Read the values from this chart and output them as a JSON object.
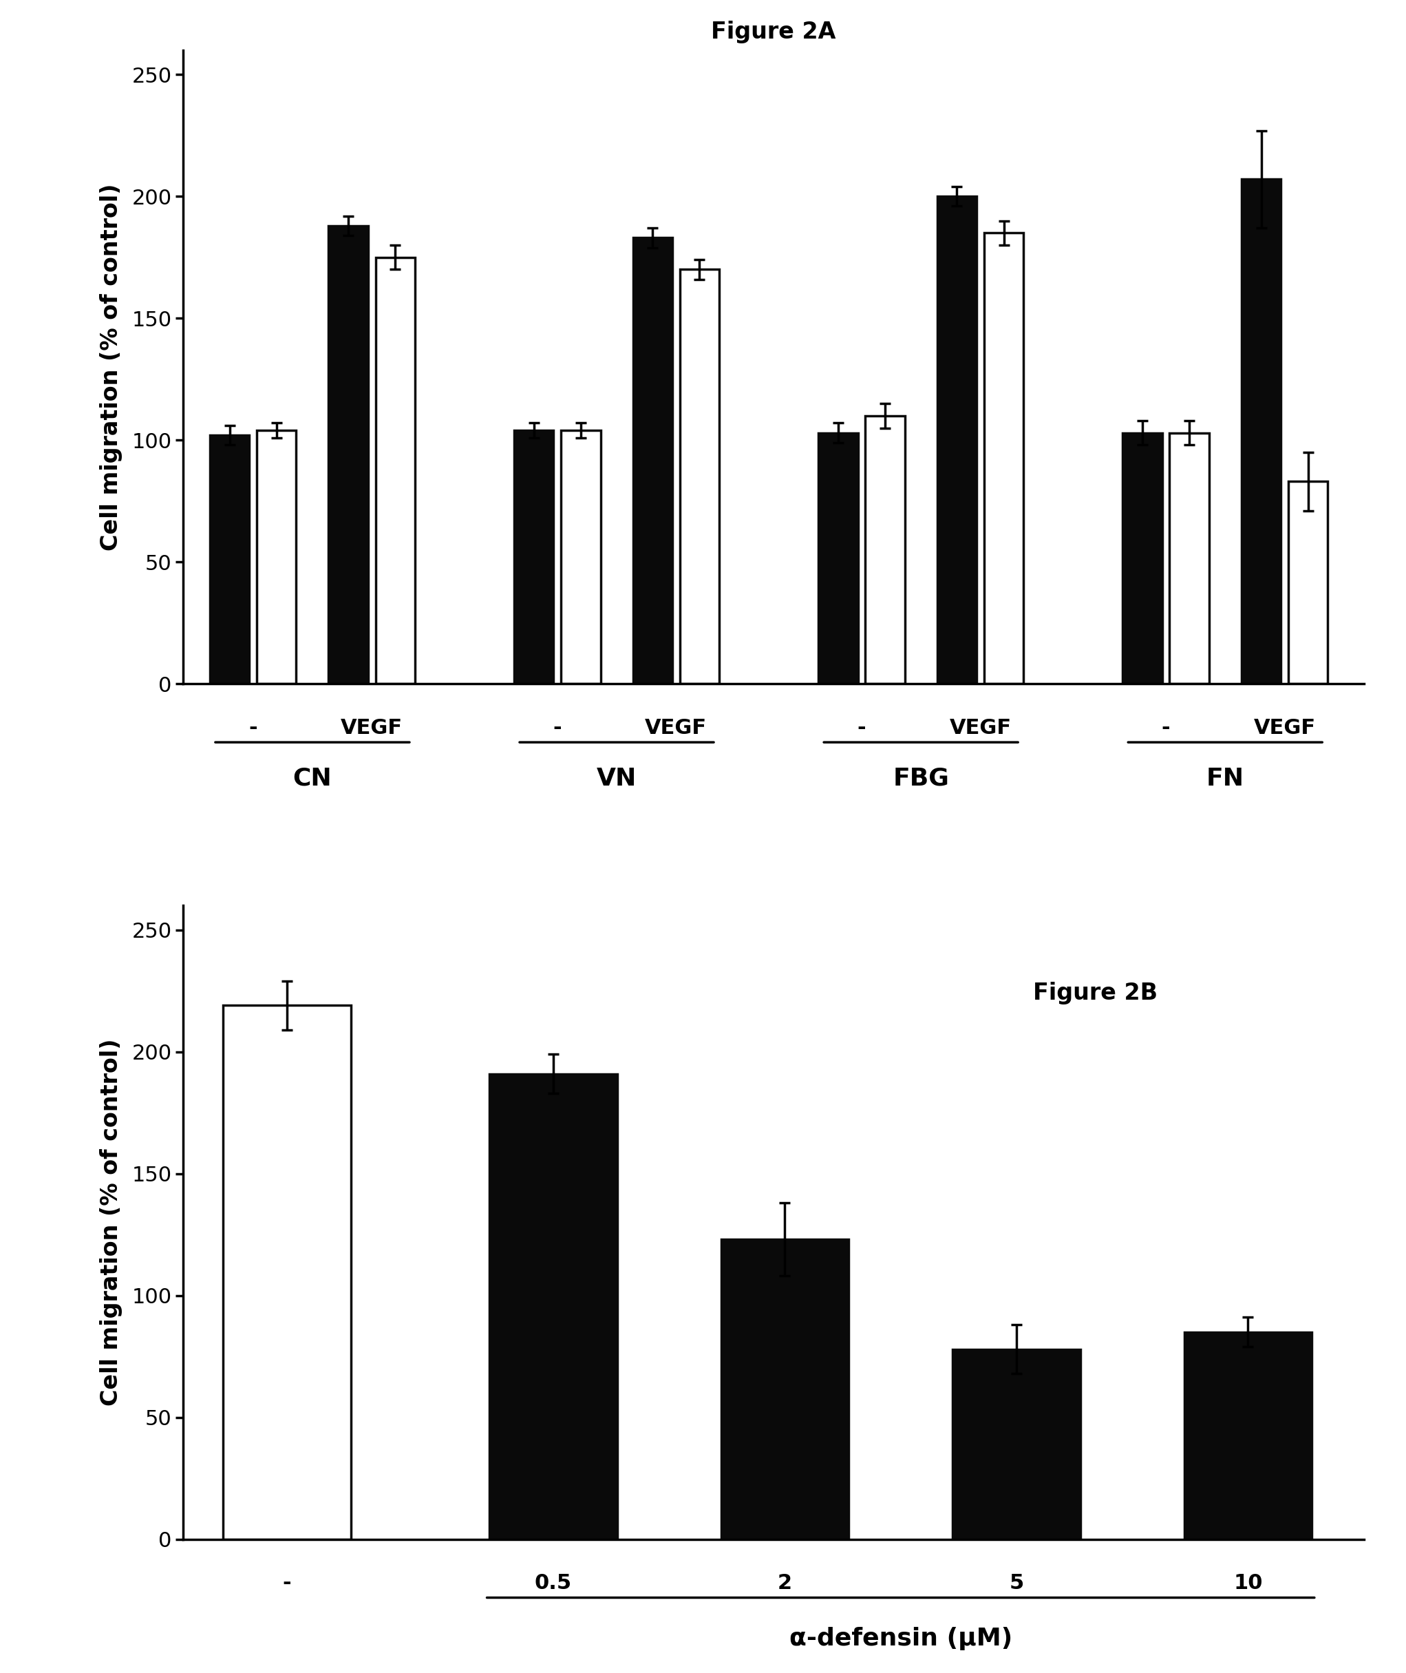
{
  "fig2a": {
    "title": "Figure 2A",
    "groups": [
      "CN",
      "VN",
      "FBG",
      "FN"
    ],
    "minus_black": [
      102,
      104,
      103,
      103
    ],
    "minus_white": [
      104,
      104,
      110,
      103
    ],
    "vegf_black": [
      188,
      183,
      200,
      207
    ],
    "vegf_white": [
      175,
      170,
      185,
      83
    ],
    "minus_black_err": [
      4,
      3,
      4,
      5
    ],
    "minus_white_err": [
      3,
      3,
      5,
      5
    ],
    "vegf_black_err": [
      4,
      4,
      4,
      20
    ],
    "vegf_white_err": [
      5,
      4,
      5,
      12
    ],
    "ylim": [
      0,
      260
    ],
    "yticks": [
      0,
      50,
      100,
      150,
      200,
      250
    ],
    "ylabel": "Cell migration (% of control)"
  },
  "fig2b": {
    "title": "Figure 2B",
    "categories": [
      "-",
      "0.5",
      "2",
      "5",
      "10"
    ],
    "values": [
      219,
      191,
      123,
      78,
      85
    ],
    "errors": [
      10,
      8,
      15,
      10,
      6
    ],
    "colors": [
      "white",
      "black",
      "black",
      "black",
      "black"
    ],
    "ylim": [
      0,
      260
    ],
    "yticks": [
      0,
      50,
      100,
      150,
      200,
      250
    ],
    "xlabel": "α-defensin (μM)",
    "ylabel": "Cell migration (% of control)"
  },
  "black_color": "#0a0a0a",
  "white_color": "#ffffff",
  "edge_color": "#0a0a0a",
  "title_fontsize": 24,
  "label_fontsize": 24,
  "tick_fontsize": 22,
  "annot_fontsize": 22,
  "group_label_fontsize": 26,
  "line_width": 2.5,
  "capsize": 6,
  "elinewidth": 2.5
}
